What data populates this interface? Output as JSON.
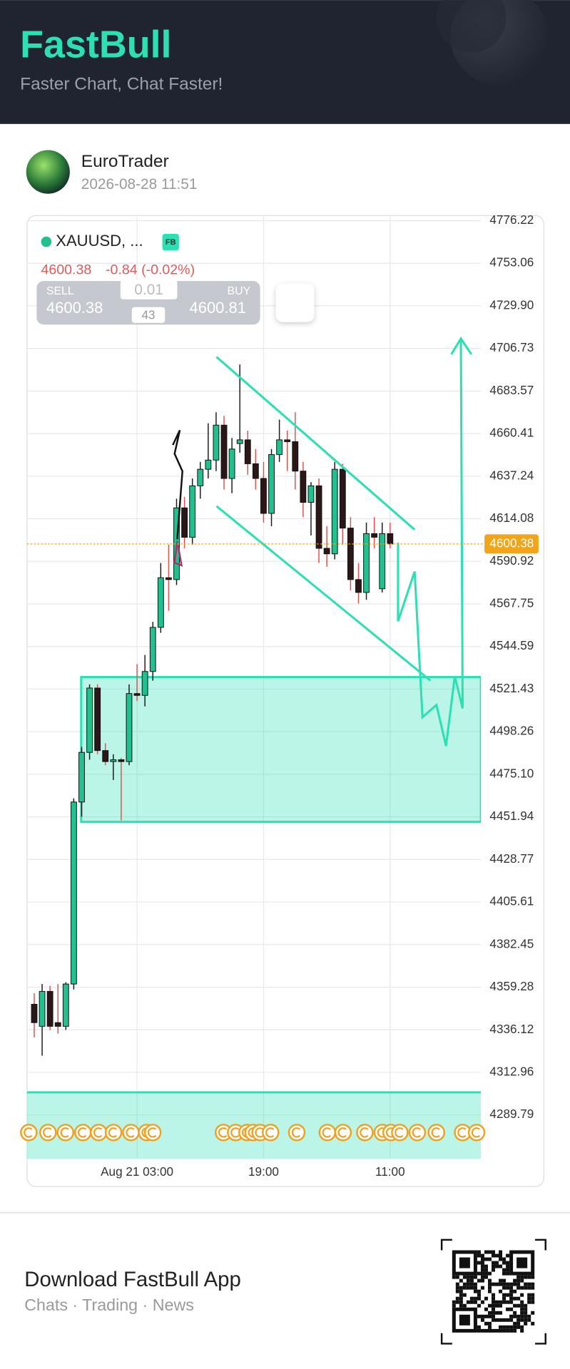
{
  "header": {
    "title": "FastBull",
    "subtitle": "Faster Chart, Chat Faster!"
  },
  "post": {
    "author": "EuroTrader",
    "timestamp": "2026-08-28 11:51"
  },
  "chart_data": {
    "type": "candlestick",
    "symbol": "XAUUSD, ...",
    "badge": "FB",
    "price": 4600.38,
    "change": "-0.84 (-0.02%)",
    "sell": {
      "label": "SELL",
      "price": 4600.38
    },
    "buy": {
      "label": "BUY",
      "price": 4600.81
    },
    "lot": 0.01,
    "spread": 43,
    "last_price": 4600.38,
    "up_color": "#22c08e",
    "down_color": "#2b1717",
    "wick_down_color": "#e0504f",
    "categories": [
      null,
      null,
      null,
      null,
      null,
      null,
      null,
      null,
      null,
      null,
      null,
      null,
      null,
      "Aug 21 03:00",
      null,
      null,
      null,
      null,
      null,
      null,
      null,
      null,
      null,
      null,
      null,
      null,
      null,
      null,
      null,
      "19:00",
      null,
      null,
      null,
      null,
      null,
      null,
      null,
      null,
      null,
      null,
      null,
      null,
      null,
      null,
      null,
      "11:00"
    ],
    "open": [
      4350,
      4338,
      4357,
      4340,
      4338,
      4361,
      4460,
      4487,
      4522,
      4488,
      4482,
      4483,
      4482,
      4519,
      4518,
      4531,
      4555,
      4582,
      4581,
      4620,
      4604,
      4632,
      4641,
      4646,
      4665,
      4636,
      4655,
      4657,
      4644,
      4636,
      4617,
      4649,
      4657,
      4656,
      4640,
      4623,
      4632,
      4598,
      4595,
      4641,
      4609,
      4581,
      4574,
      4606,
      4576,
      4606
    ],
    "high": [
      4356,
      4361,
      4360,
      4361,
      4362,
      4462,
      4490,
      4524,
      4524,
      4492,
      4486,
      4484,
      4524,
      4535,
      4540,
      4558,
      4590,
      4600,
      4625,
      4626,
      4636,
      4645,
      4666,
      4672,
      4670,
      4658,
      4698,
      4662,
      4652,
      4645,
      4652,
      4668,
      4662,
      4672,
      4645,
      4634,
      4636,
      4610,
      4645,
      4644,
      4615,
      4590,
      4612,
      4615,
      4612,
      4612
    ],
    "low": [
      4332,
      4322,
      4336,
      4334,
      4336,
      4358,
      4452,
      4483,
      4486,
      4480,
      4472,
      4450,
      4480,
      4515,
      4512,
      4526,
      4552,
      4564,
      4578,
      4598,
      4600,
      4625,
      4636,
      4640,
      4630,
      4628,
      4650,
      4638,
      4630,
      4612,
      4610,
      4645,
      4640,
      4630,
      4615,
      4605,
      4590,
      4588,
      4592,
      4600,
      4575,
      4568,
      4570,
      4598,
      4574,
      4598
    ],
    "close": [
      4340,
      4357,
      4338,
      4338,
      4361,
      4460,
      4487,
      4522,
      4488,
      4482,
      4483,
      4482,
      4519,
      4518,
      4531,
      4555,
      4582,
      4581,
      4620,
      4604,
      4632,
      4641,
      4646,
      4665,
      4636,
      4652,
      4657,
      4644,
      4636,
      4617,
      4649,
      4657,
      4656,
      4640,
      4623,
      4632,
      4598,
      4595,
      4641,
      4609,
      4581,
      4574,
      4606,
      4604,
      4606,
      4600.38
    ],
    "ylim": [
      4266,
      4779
    ],
    "yticks": [
      4776.22,
      4753.06,
      {
        "value": 4729.9,
        "label": "4729.90"
      },
      4706.73,
      4683.57,
      4660.41,
      4637.24,
      4614.08,
      4590.92,
      4567.75,
      4544.59,
      4521.43,
      4498.26,
      {
        "value": 4475.1,
        "label": "4475.10"
      },
      4451.94,
      4428.77,
      4405.61,
      4382.45,
      4359.28,
      4336.12,
      4312.96,
      4289.79
    ],
    "grid": true
  },
  "footer": {
    "title": "Download FastBull App",
    "subtitle": "Chats · Trading · News"
  }
}
